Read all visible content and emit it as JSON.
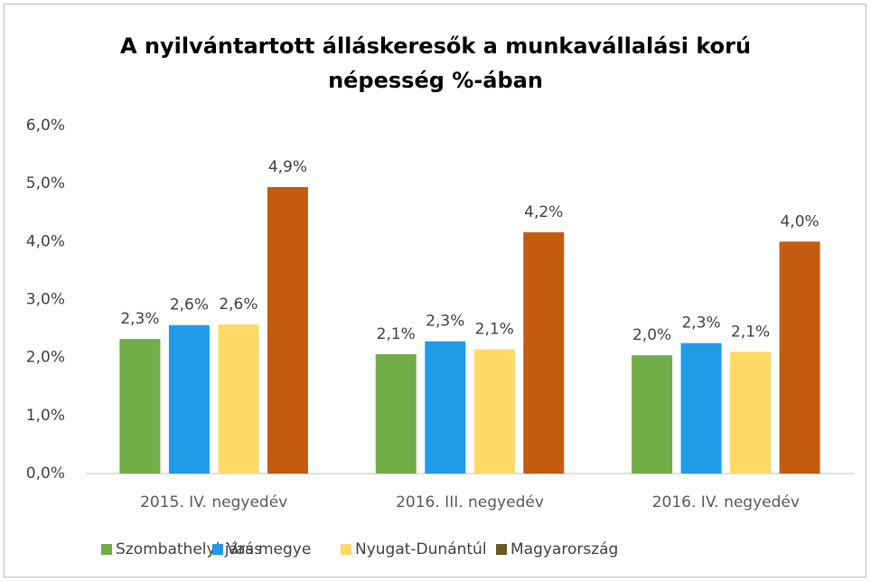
{
  "chart_data": {
    "type": "bar",
    "title": [
      "A nyilvántartott álláskeresők a munkavállalási korú",
      "népesség %-ában"
    ],
    "categories": [
      "2015. IV. negyedév",
      "2016. III. negyedév",
      "2016. IV. negyedév"
    ],
    "series": [
      {
        "name": "Szombathelyi járás",
        "color": "#70ad47",
        "values": [
          2.32,
          2.06,
          2.04
        ],
        "value_labels": [
          "2,3%",
          "2,1%",
          "2,0%"
        ]
      },
      {
        "name": "Vas megye",
        "color": "#1f9be8",
        "values": [
          2.56,
          2.28,
          2.25
        ],
        "value_labels": [
          "2,6%",
          "2,3%",
          "2,3%"
        ]
      },
      {
        "name": "Nyugat-Dunántúl",
        "color": "#ffd966",
        "values": [
          2.57,
          2.14,
          2.1
        ],
        "value_labels": [
          "2,6%",
          "2,1%",
          "2,1%"
        ]
      },
      {
        "name": "Magyarország",
        "color": "#c55a11",
        "legend_color": "#6b5a1e",
        "values": [
          4.94,
          4.16,
          4.0
        ],
        "value_labels": [
          "4,9%",
          "4,2%",
          "4,0%"
        ]
      }
    ],
    "ylim": [
      0,
      6
    ],
    "yticks": [
      {
        "value": 0,
        "label": "0,0%"
      },
      {
        "value": 1,
        "label": "1,0%"
      },
      {
        "value": 2,
        "label": "2,0%"
      },
      {
        "value": 3,
        "label": "3,0%"
      },
      {
        "value": 4,
        "label": "4,0%"
      },
      {
        "value": 5,
        "label": "5,0%"
      },
      {
        "value": 6,
        "label": "6,0%"
      }
    ],
    "grid": false,
    "legend": "bottom"
  }
}
